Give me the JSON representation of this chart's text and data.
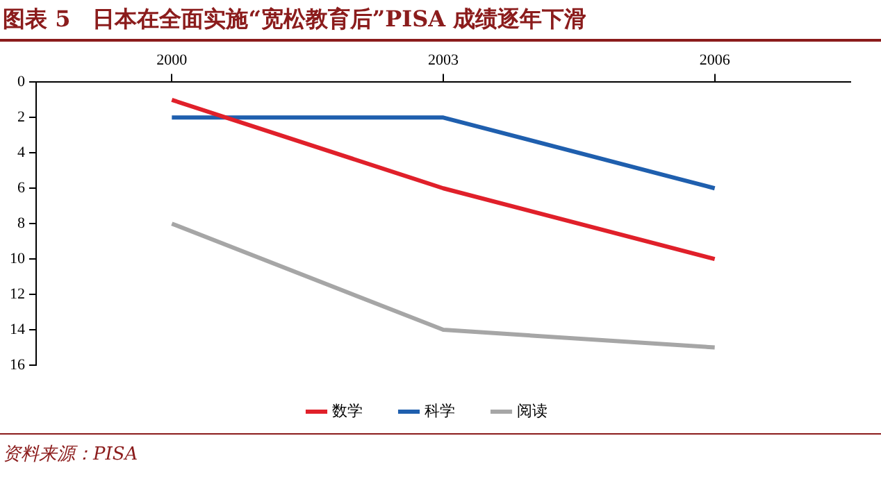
{
  "chart_data": {
    "type": "line",
    "title": "图表 5　日本在全面实施“宽松教育后”PISA 成绩逐年下滑",
    "categories": [
      "2000",
      "2003",
      "2006"
    ],
    "series": [
      {
        "name": "数学",
        "color": "#e0202a",
        "values": [
          1,
          6,
          10
        ]
      },
      {
        "name": "科学",
        "color": "#1f5fae",
        "values": [
          2,
          2,
          6
        ]
      },
      {
        "name": "阅读",
        "color": "#a6a6a6",
        "values": [
          8,
          14,
          15
        ]
      }
    ],
    "ylim": [
      16,
      0
    ],
    "yticks": [
      0,
      2,
      4,
      6,
      8,
      10,
      12,
      14,
      16
    ],
    "grid": false,
    "legend": "bottom",
    "marker": "none",
    "line_style": "solid",
    "annotations": [
      "资料来源：PISA"
    ]
  }
}
